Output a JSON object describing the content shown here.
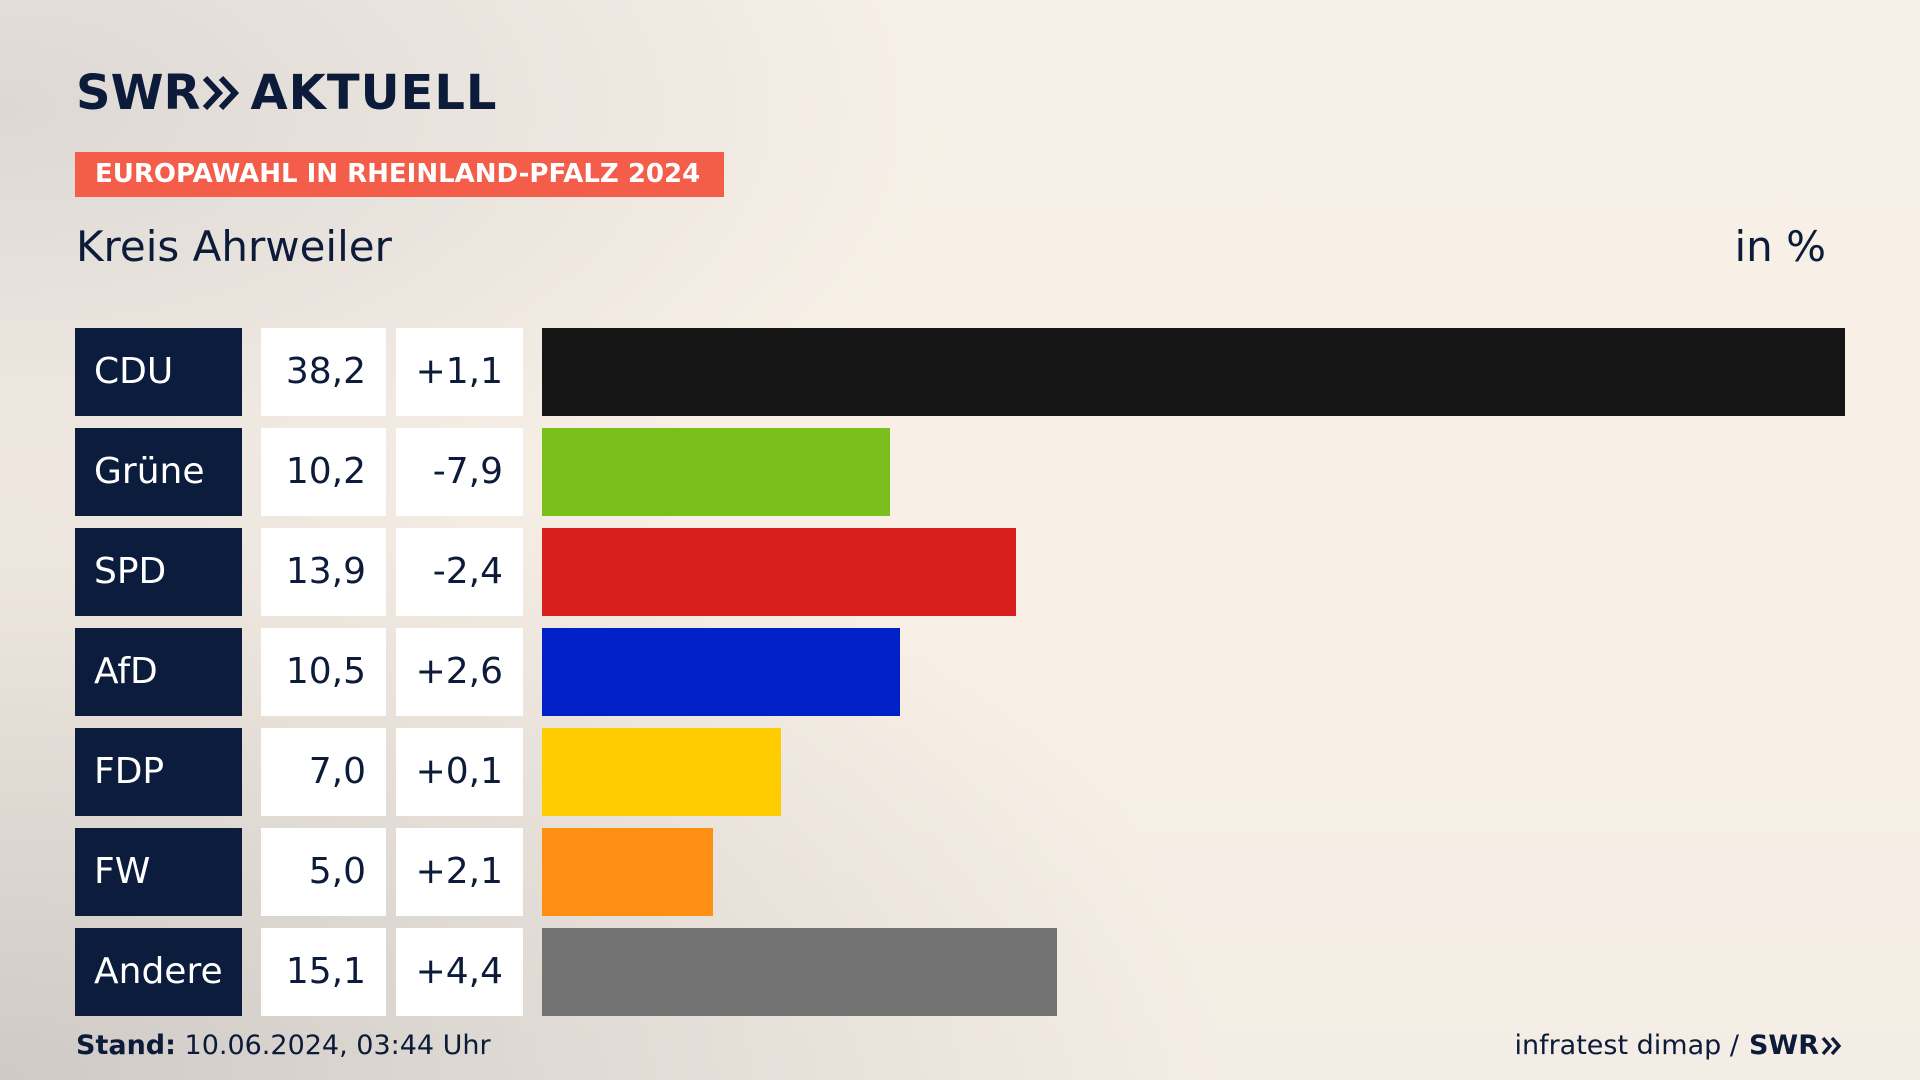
{
  "header": {
    "logo_swr": "SWR",
    "logo_aktuell": "AKTUELL",
    "banner": "EUROPAWAHL IN RHEINLAND-PFALZ 2024",
    "title": "Kreis Ahrweiler",
    "unit": "in %"
  },
  "chart_data": {
    "type": "bar",
    "orientation": "horizontal",
    "title": "Kreis Ahrweiler",
    "unit": "in %",
    "categories": [
      "CDU",
      "Grüne",
      "SPD",
      "AfD",
      "FDP",
      "FW",
      "Andere"
    ],
    "values": [
      38.2,
      10.2,
      13.9,
      10.5,
      7.0,
      5.0,
      15.1
    ],
    "value_labels": [
      "38,2",
      "10,2",
      "13,9",
      "10,5",
      "7,0",
      "5,0",
      "15,1"
    ],
    "diff_labels": [
      "+1,1",
      "-7,9",
      "-2,4",
      "+2,6",
      "+0,1",
      "+2,1",
      "+4,4"
    ],
    "colors": [
      "#151515",
      "#7bbf1c",
      "#d81f1e",
      "#0020c8",
      "#ffcc00",
      "#ff8e14",
      "#727272"
    ],
    "xlim": [
      0,
      38.2
    ],
    "grid": false
  },
  "footer": {
    "stand_label": "Stand:",
    "stand_value": "10.06.2024, 03:44 Uhr",
    "source": "infratest dimap /",
    "source_logo": "SWR"
  },
  "colors": {
    "text": "#0d1b3a",
    "banner": "#f35d4a",
    "party_box": "#0c1c3c"
  }
}
